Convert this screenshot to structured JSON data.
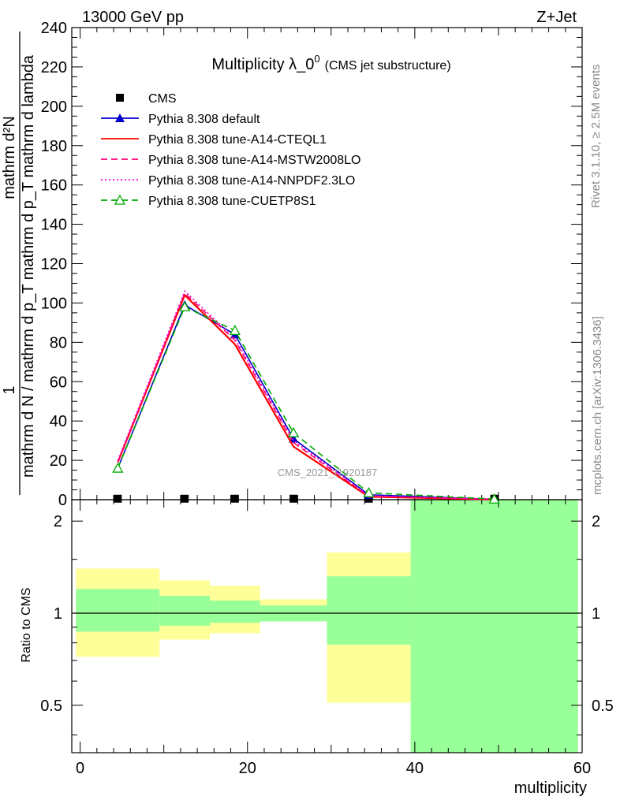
{
  "header": {
    "left": "13000 GeV pp",
    "right": "Z+Jet"
  },
  "side_labels": {
    "rivet": "Rivet 3.1.10, ≥ 2.5M events",
    "mcplots": "mcplots.cern.ch [arXiv:1306.3436]"
  },
  "watermark": "CMS_2021_I1920187",
  "chart_data": [
    {
      "type": "line",
      "title_main": "Multiplicity λ_0",
      "title_sup": "0",
      "title_sub": "(CMS jet substructure)",
      "ylabel_numerator": "1",
      "ylabel_denominator": "mathrm d N / mathrm d p_T mathrm d p_T mathrm d lambda",
      "ylabel_top": "mathrm d²N",
      "xlim": [
        -1,
        60
      ],
      "ylim": [
        0,
        240
      ],
      "yticks": [
        0,
        20,
        40,
        60,
        80,
        100,
        120,
        140,
        160,
        180,
        200,
        220,
        240
      ],
      "legend_position": "top-left",
      "series": [
        {
          "name": "CMS",
          "color": "#000000",
          "marker": "square",
          "line": "none",
          "x": [
            4.5,
            12.5,
            18.5,
            25.5,
            34.5,
            49.5
          ],
          "values": [
            0.5,
            0.5,
            0.5,
            0.5,
            0.5,
            0.5
          ]
        },
        {
          "name": "Pythia 8.308 default",
          "color": "#0000cc",
          "marker": "triangle",
          "line": "solid",
          "x": [
            4.5,
            12.5,
            18.5,
            25.5,
            34.5,
            49.5
          ],
          "values": [
            16,
            99,
            84,
            31,
            2.5,
            0.2
          ]
        },
        {
          "name": "Pythia 8.308 tune-A14-CTEQL1",
          "color": "#ff0000",
          "marker": "none",
          "line": "solid",
          "x": [
            4.5,
            12.5,
            18.5,
            25.5,
            34.5,
            49.5
          ],
          "values": [
            19,
            104,
            79,
            27,
            1.5,
            0.1
          ]
        },
        {
          "name": "Pythia 8.308 tune-A14-MSTW2008LO",
          "color": "#ff0077",
          "marker": "none",
          "line": "dashed",
          "x": [
            4.5,
            12.5,
            18.5,
            25.5,
            34.5,
            49.5
          ],
          "values": [
            19,
            105,
            81,
            29,
            1.8,
            0.1
          ]
        },
        {
          "name": "Pythia 8.308 tune-A14-NNPDF2.3LO",
          "color": "#ff00cc",
          "marker": "none",
          "line": "dotted",
          "x": [
            4.5,
            12.5,
            18.5,
            25.5,
            34.5,
            49.5
          ],
          "values": [
            20,
            106,
            82,
            30,
            2.0,
            0.1
          ]
        },
        {
          "name": "Pythia 8.308 tune-CUETP8S1",
          "color": "#00aa00",
          "marker": "triangle-open",
          "line": "dashed",
          "x": [
            4.5,
            12.5,
            18.5,
            25.5,
            34.5,
            49.5
          ],
          "values": [
            16,
            98,
            86,
            34,
            3.5,
            0.3
          ]
        }
      ]
    },
    {
      "type": "area",
      "ylabel": "Ratio to CMS",
      "xlabel": "multiplicity",
      "xlim": [
        -1,
        60
      ],
      "ylim": [
        0.35,
        2.35
      ],
      "yscale": "log",
      "yticks": [
        0.5,
        1,
        2
      ],
      "xticks": [
        0,
        20,
        40,
        60
      ],
      "reference_line": 1,
      "bands": [
        {
          "x_lo": -0.5,
          "x_hi": 9.5,
          "yellow": [
            0.72,
            1.4
          ],
          "green": [
            0.87,
            1.2
          ]
        },
        {
          "x_lo": 9.5,
          "x_hi": 15.5,
          "yellow": [
            0.82,
            1.28
          ],
          "green": [
            0.91,
            1.14
          ]
        },
        {
          "x_lo": 15.5,
          "x_hi": 21.5,
          "yellow": [
            0.86,
            1.23
          ],
          "green": [
            0.93,
            1.1
          ]
        },
        {
          "x_lo": 21.5,
          "x_hi": 29.5,
          "yellow": [
            0.94,
            1.11
          ],
          "green": [
            0.94,
            1.06
          ]
        },
        {
          "x_lo": 29.5,
          "x_hi": 39.5,
          "yellow": [
            0.51,
            1.58
          ],
          "green": [
            0.79,
            1.32
          ]
        },
        {
          "x_lo": 39.5,
          "x_hi": 59.5,
          "yellow": [
            0.35,
            2.35
          ],
          "green": [
            0.35,
            2.35
          ]
        }
      ],
      "colors": {
        "yellow": "#ffff99",
        "green": "#99ff99"
      }
    }
  ]
}
